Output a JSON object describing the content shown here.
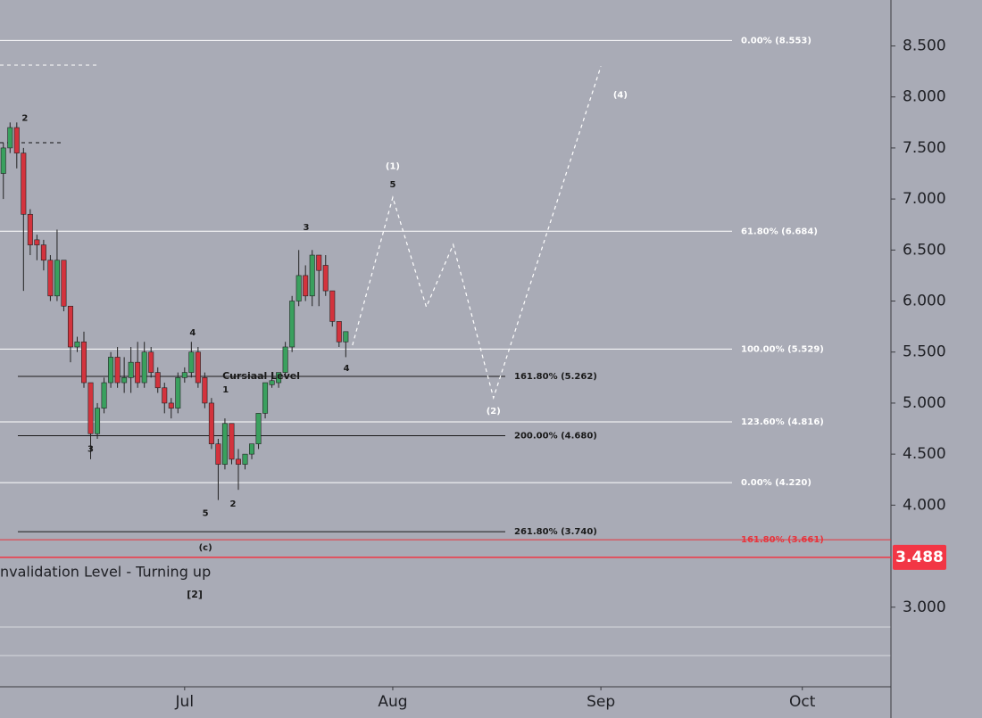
{
  "chart_data": {
    "type": "candlestick",
    "x": [
      -27,
      -26,
      -25,
      -24,
      -23,
      -22,
      -21,
      -20,
      -19,
      -18,
      -17,
      -16,
      -15,
      -14,
      -13,
      -12,
      -11,
      -10,
      -9,
      -8,
      -7,
      -6,
      -5,
      -4,
      -3,
      -2,
      -1,
      0,
      1,
      2,
      3,
      4,
      5,
      6,
      7,
      8,
      9,
      10,
      11,
      12,
      13,
      14,
      15,
      16,
      17,
      18,
      19,
      20,
      21,
      22,
      23,
      24
    ],
    "open": [
      7.25,
      7.5,
      7.7,
      7.45,
      6.85,
      6.6,
      6.55,
      6.4,
      6.05,
      6.4,
      5.95,
      5.55,
      5.6,
      5.2,
      4.7,
      4.95,
      5.2,
      5.45,
      5.2,
      5.25,
      5.4,
      5.2,
      5.5,
      5.3,
      5.15,
      5.0,
      4.95,
      5.25,
      5.3,
      5.5,
      5.25,
      5.0,
      4.6,
      4.4,
      4.8,
      4.45,
      4.4,
      4.5,
      4.6,
      4.9,
      5.18,
      5.2,
      5.3,
      5.55,
      6.0,
      6.25,
      6.05,
      6.45,
      6.35,
      6.1,
      5.8,
      5.6
    ],
    "high": [
      7.55,
      7.75,
      7.75,
      7.5,
      6.9,
      6.65,
      6.6,
      6.45,
      6.7,
      6.4,
      5.95,
      5.65,
      5.7,
      5.2,
      5.0,
      5.25,
      5.5,
      5.55,
      5.45,
      5.55,
      5.6,
      5.6,
      5.55,
      5.35,
      5.2,
      5.05,
      5.3,
      5.35,
      5.6,
      5.55,
      5.3,
      5.05,
      4.65,
      4.85,
      4.8,
      4.55,
      4.5,
      4.6,
      4.9,
      5.2,
      5.25,
      5.3,
      5.6,
      6.05,
      6.5,
      6.35,
      6.5,
      6.45,
      6.45,
      6.1,
      5.8,
      5.7
    ],
    "low": [
      7.0,
      7.45,
      7.3,
      6.1,
      6.45,
      6.4,
      6.3,
      6.0,
      6.0,
      5.9,
      5.4,
      5.5,
      5.15,
      4.45,
      4.65,
      4.9,
      5.15,
      5.15,
      5.1,
      5.1,
      5.15,
      5.15,
      5.25,
      5.1,
      4.9,
      4.85,
      4.9,
      5.2,
      5.25,
      5.15,
      4.95,
      4.55,
      4.05,
      4.35,
      4.4,
      4.15,
      4.35,
      4.45,
      4.55,
      4.85,
      5.15,
      5.15,
      5.25,
      5.5,
      5.95,
      6.0,
      5.95,
      5.95,
      6.05,
      5.75,
      5.55,
      5.45
    ],
    "close": [
      7.5,
      7.7,
      7.45,
      6.85,
      6.55,
      6.55,
      6.4,
      6.05,
      6.4,
      5.95,
      5.55,
      5.6,
      5.2,
      4.7,
      4.95,
      5.2,
      5.45,
      5.2,
      5.25,
      5.4,
      5.2,
      5.5,
      5.3,
      5.15,
      5.0,
      4.95,
      5.25,
      5.3,
      5.5,
      5.2,
      5.0,
      4.6,
      4.4,
      4.8,
      4.45,
      4.4,
      4.5,
      4.6,
      4.9,
      5.2,
      5.22,
      5.3,
      5.55,
      6.0,
      6.25,
      6.05,
      6.45,
      6.3,
      6.1,
      5.8,
      5.6,
      5.7
    ],
    "up_color": "#3aa05e",
    "down_color": "#d3333d",
    "xlim": [
      -27.5,
      105.2
    ],
    "xticks": [
      {
        "value": 0,
        "label": "Jul"
      },
      {
        "value": 31,
        "label": "Aug"
      },
      {
        "value": 62,
        "label": "Sep"
      },
      {
        "value": 92,
        "label": "Oct"
      }
    ],
    "ylim": [
      2.22,
      8.95
    ],
    "yticks": [
      {
        "value": 8.5,
        "label": "8.500"
      },
      {
        "value": 8,
        "label": "8.000"
      },
      {
        "value": 7.5,
        "label": "7.500"
      },
      {
        "value": 7,
        "label": "7.000"
      },
      {
        "value": 6.5,
        "label": "6.500"
      },
      {
        "value": 6,
        "label": "6.000"
      },
      {
        "value": 5.5,
        "label": "5.500"
      },
      {
        "value": 5,
        "label": "5.000"
      },
      {
        "value": 4.5,
        "label": "4.500"
      },
      {
        "value": 4,
        "label": "4.000"
      },
      {
        "value": 3,
        "label": "3.000"
      }
    ],
    "levels": [
      {
        "label": "0.00% (8.553)",
        "value": 8.553,
        "color": "#ffffff"
      },
      {
        "label": "61.80% (6.684)",
        "value": 6.684,
        "color": "#ffffff"
      },
      {
        "label": "100.00% (5.529)",
        "value": 5.529,
        "color": "#ffffff"
      },
      {
        "label": "123.60% (4.816)",
        "value": 4.816,
        "color": "#ffffff"
      },
      {
        "label": "0.00% (4.220)",
        "value": 4.22,
        "color": "#ffffff"
      },
      {
        "label": "161.80% (3.661)",
        "value": 3.661,
        "color": "#e8343c"
      },
      {
        "label": "161.80% (5.262)",
        "value": 5.262,
        "color": "#1a1a1a"
      },
      {
        "label": "200.00% (4.680)",
        "value": 4.68,
        "color": "#1a1a1a"
      },
      {
        "label": "261.80% (3.740)",
        "value": 3.74,
        "color": "#1a1a1a"
      }
    ],
    "last_price": {
      "value": 3.488,
      "label": "3.488",
      "color": "#f23645"
    },
    "projection": {
      "x": [
        25,
        31,
        36,
        40,
        46,
        62
      ],
      "values": [
        5.567,
        7.016,
        5.942,
        6.553,
        5.052,
        8.3
      ]
    },
    "annotations": [
      {
        "text": "2",
        "x": -23.8,
        "y": 7.79,
        "color": "#1a1a1a"
      },
      {
        "text": "3",
        "x": -14,
        "y": 4.55,
        "color": "#1a1a1a"
      },
      {
        "text": "4",
        "x": 1.2,
        "y": 5.69,
        "color": "#1a1a1a"
      },
      {
        "text": "1",
        "x": 6.1,
        "y": 5.13,
        "color": "#1a1a1a"
      },
      {
        "text": "5",
        "x": 3.1,
        "y": 3.92,
        "color": "#1a1a1a"
      },
      {
        "text": "2",
        "x": 7.2,
        "y": 4.01,
        "color": "#1a1a1a"
      },
      {
        "text": "3",
        "x": 18.1,
        "y": 6.72,
        "color": "#1a1a1a"
      },
      {
        "text": "4",
        "x": 24.1,
        "y": 5.34,
        "color": "#1a1a1a"
      },
      {
        "text": "5",
        "x": 31,
        "y": 7.14,
        "color": "#1a1a1a"
      },
      {
        "text": "(1)",
        "x": 31,
        "y": 7.32,
        "color": "#ffffff"
      },
      {
        "text": "(2)",
        "x": 46,
        "y": 4.92,
        "color": "#ffffff"
      },
      {
        "text": "(4)",
        "x": 64.9,
        "y": 8.02,
        "color": "#ffffff"
      },
      {
        "text": "(c)",
        "x": 3.1,
        "y": 3.585,
        "color": "#1a1a1a"
      },
      {
        "text": "[2]",
        "x": 1.5,
        "y": 3.12,
        "color": "#1a1a1a"
      },
      {
        "text": "Cursiaal Level",
        "x": 11.4,
        "y": 5.26,
        "color": "#1a1a1a"
      }
    ],
    "note": {
      "text": "nvalidation Level - Turning up",
      "x": -27.5,
      "y": 3.34
    }
  }
}
